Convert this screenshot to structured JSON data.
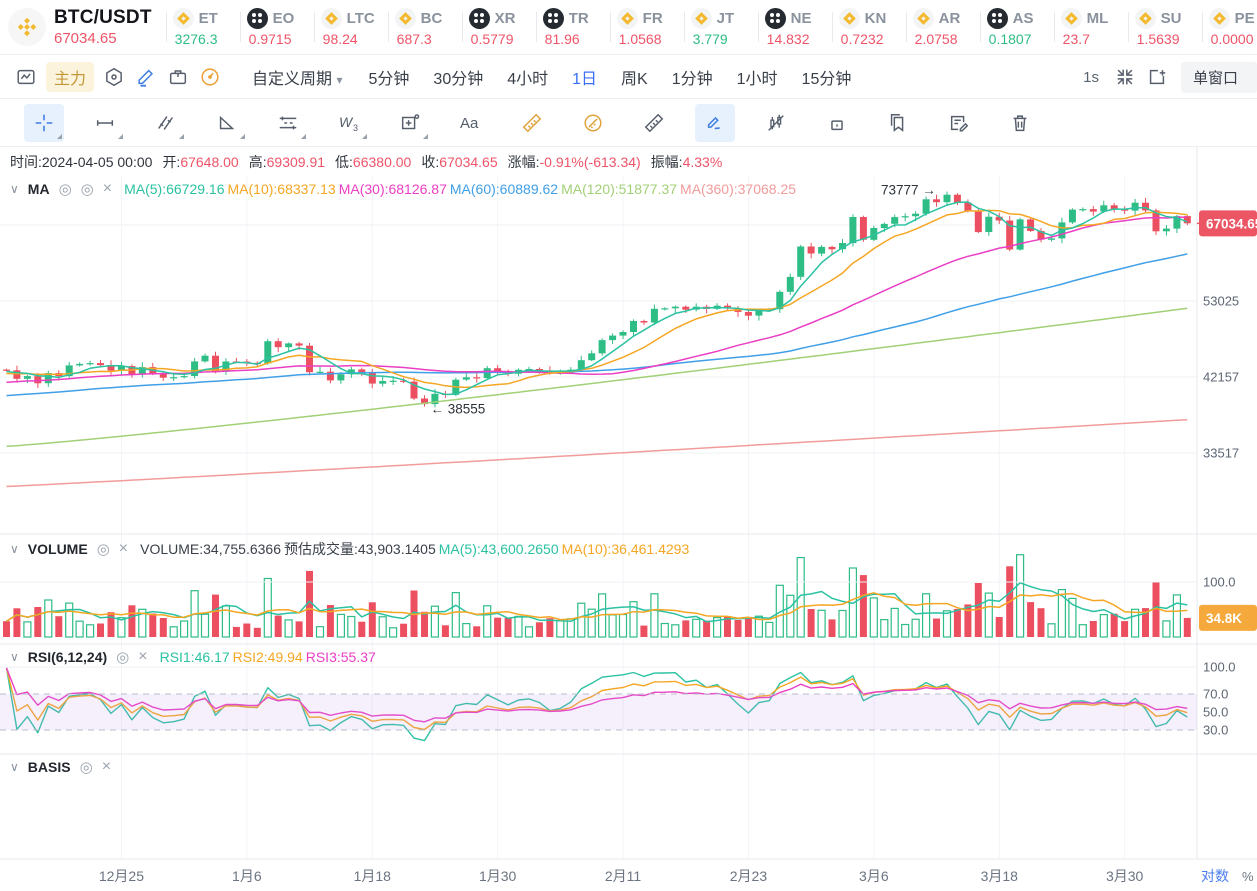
{
  "ticker_bar": {
    "pair": "BTC/USDT",
    "last_price": "67034.65",
    "tickers": [
      {
        "symbol": "ET",
        "price": "3276.3",
        "dir": "up",
        "icon": "binance"
      },
      {
        "symbol": "EO",
        "price": "0.9715",
        "dir": "down",
        "icon": "coin"
      },
      {
        "symbol": "LTC",
        "price": "98.24",
        "dir": "down",
        "icon": "binance"
      },
      {
        "symbol": "BC",
        "price": "687.3",
        "dir": "down",
        "icon": "binance"
      },
      {
        "symbol": "XR",
        "price": "0.5779",
        "dir": "down",
        "icon": "coin"
      },
      {
        "symbol": "TR",
        "price": "81.96",
        "dir": "down",
        "icon": "coin"
      },
      {
        "symbol": "FR",
        "price": "1.0568",
        "dir": "down",
        "icon": "binance"
      },
      {
        "symbol": "JT",
        "price": "3.779",
        "dir": "up",
        "icon": "binance"
      },
      {
        "symbol": "NE",
        "price": "14.832",
        "dir": "down",
        "icon": "coin"
      },
      {
        "symbol": "KN",
        "price": "0.7232",
        "dir": "down",
        "icon": "binance"
      },
      {
        "symbol": "AR",
        "price": "2.0758",
        "dir": "down",
        "icon": "binance"
      },
      {
        "symbol": "AS",
        "price": "0.1807",
        "dir": "up",
        "icon": "coin"
      },
      {
        "symbol": "ML",
        "price": "23.7",
        "dir": "down",
        "icon": "binance"
      },
      {
        "symbol": "SU",
        "price": "1.5639",
        "dir": "down",
        "icon": "binance"
      },
      {
        "symbol": "PE",
        "price": "0.0000",
        "dir": "down",
        "icon": "binance"
      }
    ]
  },
  "toolbar": {
    "main_label": "主力",
    "period_dropdown": "自定义周期",
    "caret": "▾",
    "timeframes": [
      "5分钟",
      "30分钟",
      "4小时",
      "1日",
      "周K",
      "1分钟",
      "1小时",
      "15分钟"
    ],
    "active_timeframe": "1日",
    "seconds_label": "1s",
    "window_button": "单窗口"
  },
  "ohlc": {
    "items": [
      {
        "label": "时间:",
        "value": "2024-04-05 00:00",
        "red": false
      },
      {
        "label": "开:",
        "value": "67648.00",
        "red": true
      },
      {
        "label": "高:",
        "value": "69309.91",
        "red": true
      },
      {
        "label": "低:",
        "value": "66380.00",
        "red": true
      },
      {
        "label": "收:",
        "value": "67034.65",
        "red": true
      },
      {
        "label": "涨幅:",
        "value": "-0.91%(-613.34)",
        "red": true
      },
      {
        "label": "振幅:",
        "value": "4.33%",
        "red": true
      }
    ]
  },
  "ma_legend": {
    "name": "MA",
    "items": [
      {
        "text": "MA(5):66729.16",
        "color": "#2bc2a2"
      },
      {
        "text": "MA(10):68337.13",
        "color": "#f5a623"
      },
      {
        "text": "MA(30):68126.87",
        "color": "#ea3fc4"
      },
      {
        "text": "MA(60):60889.62",
        "color": "#3f9fe8"
      },
      {
        "text": "MA(120):51877.37",
        "color": "#a2d077"
      },
      {
        "text": "MA(360):37068.25",
        "color": "#f29b9b"
      }
    ]
  },
  "volume_legend": {
    "name": "VOLUME",
    "items": [
      {
        "text": "VOLUME:34,755.6366",
        "color": "#3a4049"
      },
      {
        "text": "预估成交量:43,903.1405",
        "color": "#3a4049"
      },
      {
        "text": "MA(5):43,600.2650",
        "color": "#2bc2a2"
      },
      {
        "text": "MA(10):36,461.4293",
        "color": "#f5a623"
      }
    ]
  },
  "rsi_legend": {
    "name": "RSI(6,12,24)",
    "items": [
      {
        "text": "RSI1:46.17",
        "color": "#2bc2a2"
      },
      {
        "text": "RSI2:49.94",
        "color": "#f5a623"
      },
      {
        "text": "RSI3:55.37",
        "color": "#ea3fc4"
      }
    ]
  },
  "basis_legend": {
    "name": "BASIS"
  },
  "axis": {
    "price_badge": "67034.65",
    "price_badge_color": "#ec5564",
    "price_labels": [
      "53025",
      "42157",
      "33517"
    ],
    "volume_gridline_label": "100.0",
    "volume_badge": "34.8K",
    "volume_badge_color": "#f5a93c",
    "rsi_labels": [
      "100.0",
      "70.0",
      "50.0",
      "30.0"
    ],
    "log_label": "对数",
    "pct_label": "%"
  },
  "chart_data": {
    "type": "candlestick",
    "up_color": "#2ebd85",
    "down_color": "#ec4f5f",
    "ma_colors": [
      "#2bc2a2",
      "#f5a623",
      "#ea3fc4",
      "#3f9fe8"
    ],
    "ma_periods": [
      5,
      10,
      30,
      60
    ],
    "ma120": {
      "color": "#a2d077",
      "start": 34200,
      "end": 51877.37
    },
    "ma360": {
      "color": "#f29b9b",
      "start": 30300,
      "end": 37068.25
    },
    "rsi_periods": [
      6,
      12,
      24
    ],
    "rsi_colors": [
      "#2bc2a2",
      "#f5a623",
      "#ea3fc4"
    ],
    "x_ticks": [
      {
        "label": "12月25",
        "index": 11
      },
      {
        "label": "1月6",
        "index": 23
      },
      {
        "label": "1月18",
        "index": 35
      },
      {
        "label": "1月30",
        "index": 47
      },
      {
        "label": "2月11",
        "index": 59
      },
      {
        "label": "2月23",
        "index": 71
      },
      {
        "label": "3月6",
        "index": 83
      },
      {
        "label": "3月18",
        "index": 95
      },
      {
        "label": "3月30",
        "index": 107
      }
    ],
    "closes": [
      43024,
      41940,
      42278,
      41374,
      42657,
      42275,
      43668,
      43861,
      43969,
      43710,
      42991,
      43576,
      42520,
      43442,
      42600,
      42072,
      42141,
      42280,
      44187,
      44957,
      42845,
      44179,
      44162,
      43989,
      43943,
      46970,
      46124,
      46654,
      46339,
      42782,
      42847,
      41732,
      42511,
      43137,
      42776,
      41327,
      41659,
      41696,
      41580,
      39507,
      38850,
      40077,
      39961,
      41823,
      42120,
      42031,
      43302,
      42941,
      42580,
      43082,
      43194,
      43011,
      42582,
      42709,
      43098,
      44349,
      45288,
      47132,
      47771,
      48294,
      49917,
      49699,
      51795,
      51880,
      52124,
      51662,
      52122,
      51779,
      52284,
      51839,
      51304,
      50731,
      51571,
      51733,
      54522,
      57037,
      62504,
      61198,
      62440,
      61987,
      63167,
      68330,
      63801,
      66106,
      66925,
      68300,
      68498,
      69019,
      72078,
      71452,
      73083,
      71396,
      69499,
      65300,
      68393,
      67609,
      61937,
      67840,
      65501,
      63796,
      64062,
      67234,
      69880,
      69988,
      69469,
      70780,
      69892,
      69645,
      71333,
      69702,
      65446,
      65980,
      68508,
      67034.65
    ],
    "wick_overrides": {
      "high": {
        "90": 73777
      },
      "low": {
        "40": 38555
      }
    },
    "last_volume_k": 34.755,
    "annotations": [
      {
        "text": "← 38555",
        "index": 40,
        "price": 38555,
        "side": "right"
      },
      {
        "text": "73777 →",
        "index": 90,
        "price": 73777,
        "side": "left"
      }
    ]
  }
}
